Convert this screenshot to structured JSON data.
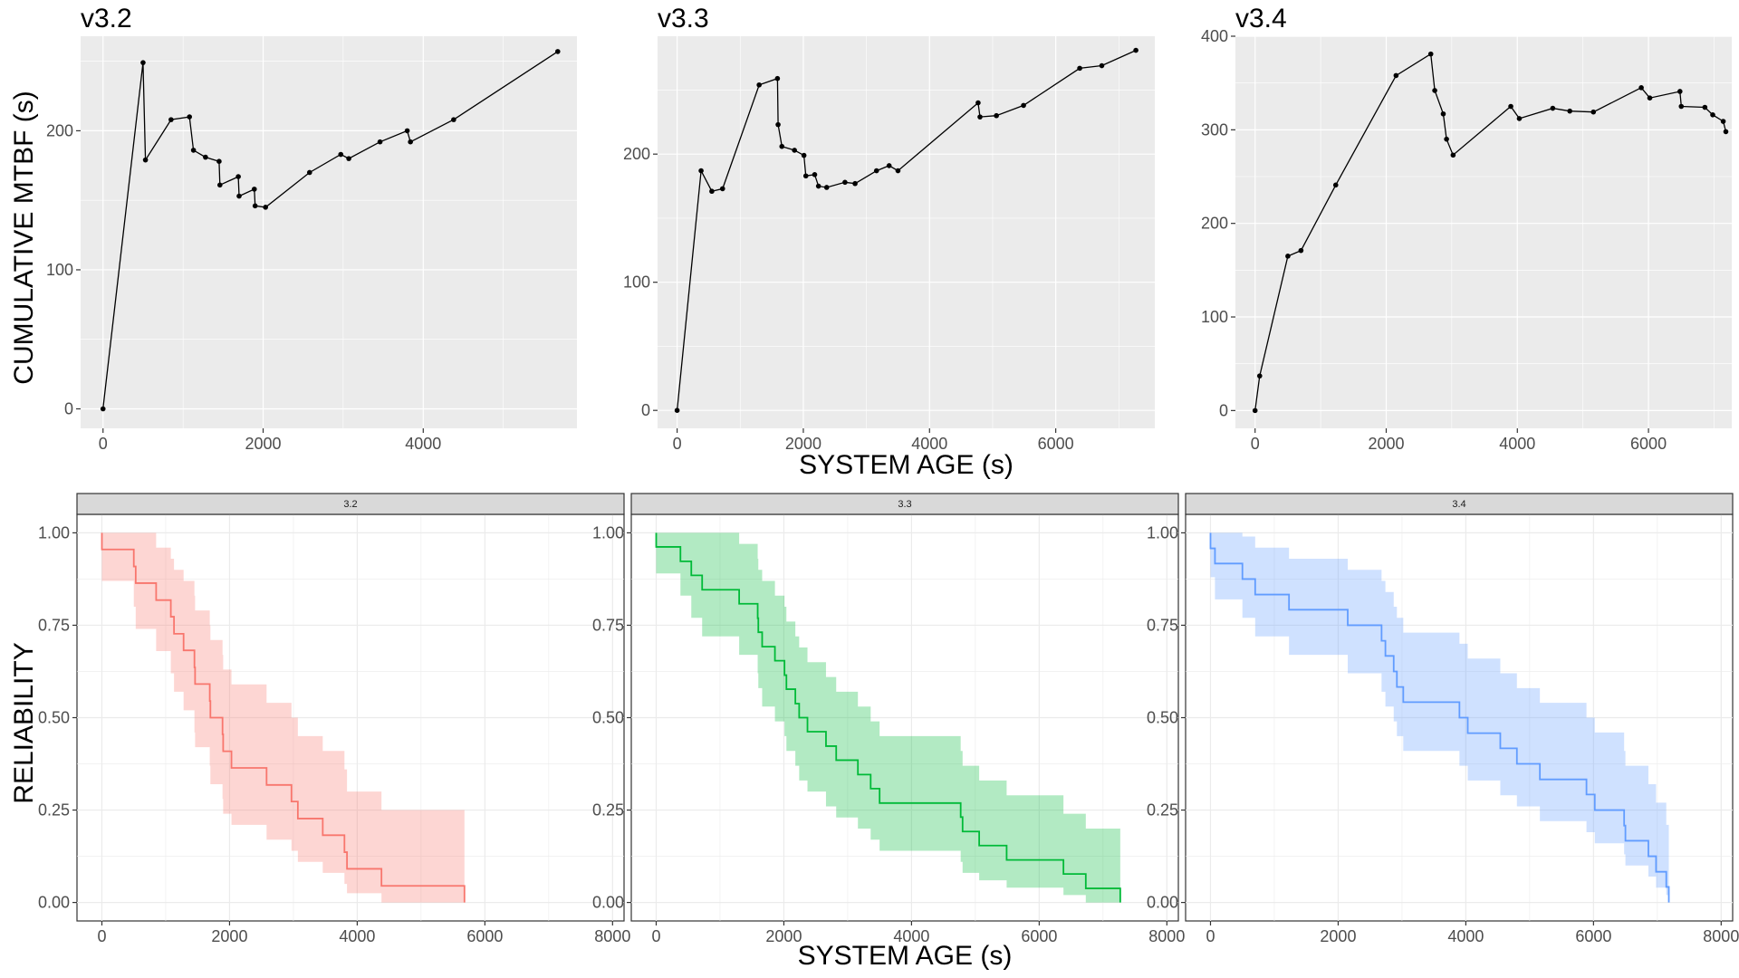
{
  "chart_data": [
    {
      "type": "line",
      "title": "v3.2",
      "ylabel": "CUMULATIVE MTBF (s)",
      "xlim": [
        -280,
        5920
      ],
      "ylim": [
        -14,
        268
      ],
      "xticks": [
        0,
        2000,
        4000
      ],
      "yticks": [
        0,
        100,
        200
      ],
      "grid": true,
      "series": [
        {
          "x": [
            0,
            500,
            530,
            850,
            1080,
            1130,
            1280,
            1450,
            1460,
            1690,
            1700,
            1890,
            1900,
            2030,
            2580,
            2970,
            3070,
            3460,
            3800,
            3840,
            4380,
            5680
          ],
          "y": [
            0,
            249,
            179,
            208,
            210,
            186,
            181,
            178,
            161,
            167,
            153,
            158,
            146,
            145,
            170,
            183,
            180,
            192,
            200,
            192,
            208,
            257
          ]
        }
      ]
    },
    {
      "type": "line",
      "title": "v3.3",
      "xlabel": "SYSTEM AGE (s)",
      "xlim": [
        -310,
        7570
      ],
      "ylim": [
        -14,
        292
      ],
      "xticks": [
        0,
        2000,
        4000,
        6000
      ],
      "yticks": [
        0,
        100,
        200
      ],
      "grid": true,
      "series": [
        {
          "x": [
            0,
            380,
            550,
            720,
            1300,
            1590,
            1600,
            1660,
            1860,
            2010,
            2040,
            2180,
            2240,
            2370,
            2660,
            2820,
            3160,
            3360,
            3500,
            4770,
            4800,
            5060,
            5490,
            6380,
            6730,
            7270
          ],
          "y": [
            0,
            187,
            171,
            173,
            254,
            259,
            223,
            206,
            203,
            199,
            183,
            184,
            175,
            174,
            178,
            177,
            187,
            191,
            187,
            240,
            229,
            230,
            238,
            267,
            269,
            281
          ]
        }
      ]
    },
    {
      "type": "line",
      "title": "v3.4",
      "xlim": [
        -300,
        7270
      ],
      "ylim": [
        -19,
        400
      ],
      "xticks": [
        0,
        2000,
        4000,
        6000
      ],
      "yticks": [
        0,
        100,
        200,
        300,
        400
      ],
      "grid": true,
      "series": [
        {
          "x": [
            0,
            70,
            500,
            700,
            1230,
            2150,
            2680,
            2740,
            2870,
            2920,
            3020,
            3900,
            4030,
            4540,
            4800,
            5160,
            5890,
            6020,
            6480,
            6500,
            6860,
            6980,
            7140,
            7180
          ],
          "y": [
            0,
            37,
            165,
            171,
            241,
            358,
            381,
            342,
            317,
            290,
            273,
            325,
            312,
            323,
            320,
            319,
            345,
            334,
            341,
            325,
            324,
            316,
            309,
            298
          ]
        }
      ]
    },
    {
      "type": "area",
      "facet": "3.2",
      "ylabel": "RELIABILITY",
      "xlim": [
        -390,
        8180
      ],
      "ylim": [
        -0.05,
        1.05
      ],
      "xticks": [
        0,
        2000,
        4000,
        6000,
        8000
      ],
      "yticks": [
        "0.00",
        "0.25",
        "0.50",
        "0.75",
        "1.00"
      ],
      "grid": true,
      "color": "#F8766D",
      "fill": "#F8766D",
      "series": [
        {
          "x": [
            0,
            500,
            530,
            850,
            1080,
            1130,
            1280,
            1450,
            1460,
            1690,
            1700,
            1890,
            1900,
            2030,
            2580,
            2970,
            3070,
            3460,
            3800,
            3840,
            4380,
            5680
          ],
          "y": [
            0.955,
            0.909,
            0.864,
            0.818,
            0.773,
            0.727,
            0.682,
            0.636,
            0.591,
            0.545,
            0.5,
            0.455,
            0.409,
            0.364,
            0.318,
            0.273,
            0.227,
            0.182,
            0.136,
            0.091,
            0.045,
            0.0
          ],
          "lower": [
            0.87,
            0.8,
            0.74,
            0.68,
            0.62,
            0.57,
            0.52,
            0.46,
            0.42,
            0.37,
            0.32,
            0.28,
            0.24,
            0.21,
            0.17,
            0.14,
            0.11,
            0.08,
            0.05,
            0.025,
            0.0,
            0.0
          ],
          "upper": [
            1.0,
            1.0,
            1.0,
            0.96,
            0.93,
            0.9,
            0.87,
            0.83,
            0.79,
            0.75,
            0.71,
            0.67,
            0.63,
            0.59,
            0.54,
            0.5,
            0.45,
            0.41,
            0.36,
            0.3,
            0.25,
            0.0
          ]
        }
      ]
    },
    {
      "type": "area",
      "facet": "3.3",
      "xlabel": "SYSTEM AGE (s)",
      "xlim": [
        -390,
        8180
      ],
      "ylim": [
        -0.05,
        1.05
      ],
      "xticks": [
        0,
        2000,
        4000,
        6000,
        8000
      ],
      "yticks": [
        "0.00",
        "0.25",
        "0.50",
        "0.75",
        "1.00"
      ],
      "grid": true,
      "color": "#00BA38",
      "fill": "#00BA38",
      "series": [
        {
          "x": [
            0,
            380,
            550,
            720,
            1300,
            1590,
            1600,
            1660,
            1860,
            2010,
            2040,
            2180,
            2240,
            2370,
            2660,
            2820,
            3160,
            3360,
            3500,
            4770,
            4800,
            5060,
            5490,
            6380,
            6730,
            7270
          ],
          "y": [
            0.962,
            0.923,
            0.885,
            0.846,
            0.808,
            0.769,
            0.731,
            0.692,
            0.654,
            0.615,
            0.577,
            0.538,
            0.5,
            0.462,
            0.423,
            0.385,
            0.346,
            0.308,
            0.269,
            0.231,
            0.192,
            0.154,
            0.115,
            0.077,
            0.038,
            0.0
          ],
          "lower": [
            0.89,
            0.83,
            0.77,
            0.72,
            0.67,
            0.62,
            0.58,
            0.53,
            0.49,
            0.45,
            0.41,
            0.37,
            0.33,
            0.3,
            0.26,
            0.23,
            0.2,
            0.17,
            0.14,
            0.11,
            0.08,
            0.06,
            0.04,
            0.02,
            0.0,
            0.0
          ],
          "upper": [
            1.0,
            1.0,
            1.0,
            1.0,
            0.97,
            0.93,
            0.9,
            0.87,
            0.83,
            0.8,
            0.76,
            0.72,
            0.69,
            0.65,
            0.61,
            0.57,
            0.53,
            0.49,
            0.45,
            0.41,
            0.37,
            0.33,
            0.29,
            0.24,
            0.2,
            0.0
          ]
        }
      ]
    },
    {
      "type": "area",
      "facet": "3.4",
      "xlim": [
        -390,
        8180
      ],
      "ylim": [
        -0.05,
        1.05
      ],
      "xticks": [
        0,
        2000,
        4000,
        6000,
        8000
      ],
      "yticks": [
        "0.00",
        "0.25",
        "0.50",
        "0.75",
        "1.00"
      ],
      "grid": true,
      "color": "#619CFF",
      "fill": "#619CFF",
      "series": [
        {
          "x": [
            0,
            70,
            500,
            700,
            1230,
            2150,
            2680,
            2740,
            2870,
            2920,
            3020,
            3900,
            4030,
            4540,
            4800,
            5160,
            5890,
            6020,
            6480,
            6500,
            6860,
            6980,
            7140,
            7180
          ],
          "y": [
            0.958,
            0.917,
            0.875,
            0.833,
            0.792,
            0.75,
            0.708,
            0.667,
            0.625,
            0.583,
            0.542,
            0.5,
            0.458,
            0.417,
            0.375,
            0.333,
            0.292,
            0.25,
            0.208,
            0.167,
            0.125,
            0.083,
            0.042,
            0.0
          ],
          "lower": [
            0.88,
            0.82,
            0.77,
            0.72,
            0.67,
            0.62,
            0.57,
            0.53,
            0.49,
            0.45,
            0.41,
            0.37,
            0.33,
            0.29,
            0.26,
            0.22,
            0.19,
            0.16,
            0.13,
            0.1,
            0.07,
            0.04,
            0.02,
            0.0
          ],
          "upper": [
            1.0,
            1.0,
            0.99,
            0.96,
            0.93,
            0.9,
            0.87,
            0.84,
            0.8,
            0.77,
            0.73,
            0.7,
            0.66,
            0.62,
            0.58,
            0.54,
            0.5,
            0.46,
            0.41,
            0.37,
            0.32,
            0.27,
            0.21,
            0.0
          ]
        }
      ]
    }
  ]
}
